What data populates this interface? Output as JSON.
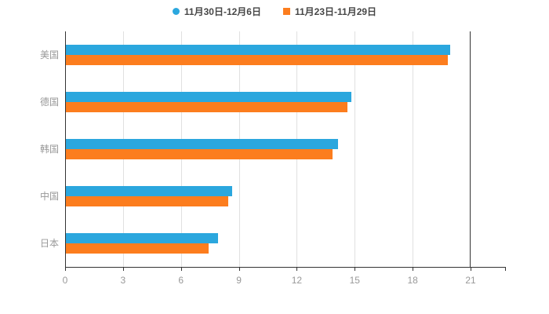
{
  "chart_data": {
    "type": "bar",
    "orientation": "horizontal",
    "title": "",
    "xlabel": "",
    "ylabel": "",
    "categories": [
      "美国",
      "德国",
      "韩国",
      "中国",
      "日本"
    ],
    "series": [
      {
        "name": "11月30日-12月6日",
        "color": "#2BA7DE",
        "marker": "circle",
        "values": [
          19.9,
          14.8,
          14.1,
          8.6,
          7.9
        ]
      },
      {
        "name": "11月23日-11月29日",
        "color": "#FC7D1E",
        "marker": "square",
        "values": [
          19.8,
          14.6,
          13.8,
          8.4,
          7.4
        ]
      }
    ],
    "xlim": [
      0,
      21
    ],
    "ticks": [
      0,
      3,
      6,
      9,
      12,
      15,
      18,
      21
    ],
    "grid": true,
    "legend_position": "top"
  },
  "colors": {
    "axis": "#333333",
    "grid": "#e0e0e0",
    "tick_label": "#999999",
    "category_label": "#999999",
    "background": "#ffffff"
  }
}
